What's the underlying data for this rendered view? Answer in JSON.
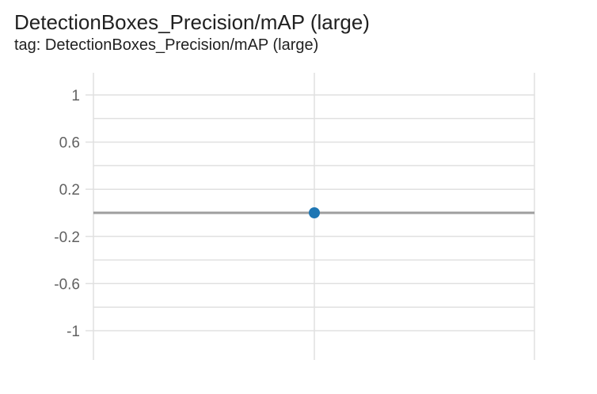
{
  "card": {
    "title": "DetectionBoxes_Precision/mAP (large)",
    "subtitle": "tag: DetectionBoxes_Precision/mAP (large)"
  },
  "chart_data": {
    "type": "scatter",
    "title": "DetectionBoxes_Precision/mAP (large)",
    "xlabel": "",
    "ylabel": "",
    "ylim": [
      -1.1,
      1.1
    ],
    "y_ticks": [
      1,
      0.6,
      0.2,
      -0.2,
      -0.6,
      -1
    ],
    "y_tick_labels": [
      "1",
      "0.6",
      "0.2",
      "-0.2",
      "-0.6",
      "-1"
    ],
    "x_ticks_count": 3,
    "grid": true,
    "series": [
      {
        "color": "#1f77b4",
        "points": [
          {
            "x": 0,
            "y": 0
          }
        ]
      }
    ],
    "zero_line_color": "#9e9e9e",
    "grid_color": "#e0e0e0"
  }
}
